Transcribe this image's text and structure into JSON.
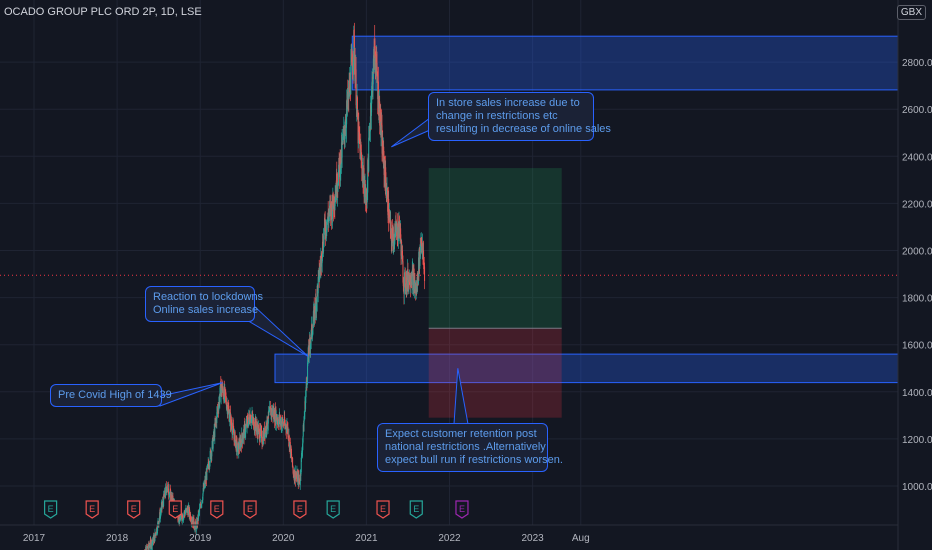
{
  "header": {
    "symbol_title": "OCADO GROUP PLC ORD 2P, 1D, LSE",
    "currency": "GBX"
  },
  "chart_data": {
    "type": "candlestick",
    "y_ticks": [
      "1000.0",
      "1200.0",
      "1400.0",
      "1600.0",
      "1800.0",
      "2000.0",
      "2200.0",
      "2400.0",
      "2600.0",
      "2800.0"
    ],
    "x_ticks": [
      "2017",
      "2018",
      "2019",
      "2020",
      "2021",
      "2022",
      "2023",
      "Aug"
    ],
    "ylim": [
      860,
      3000
    ],
    "current_price": 1895,
    "price_path": [
      [
        2018.3,
        700
      ],
      [
        2018.45,
        780
      ],
      [
        2018.6,
        1000
      ],
      [
        2018.75,
        860
      ],
      [
        2018.85,
        900
      ],
      [
        2018.95,
        820
      ],
      [
        2019.05,
        1000
      ],
      [
        2019.15,
        1180
      ],
      [
        2019.25,
        1420
      ],
      [
        2019.3,
        1380
      ],
      [
        2019.45,
        1150
      ],
      [
        2019.6,
        1300
      ],
      [
        2019.75,
        1200
      ],
      [
        2019.85,
        1320
      ],
      [
        2019.95,
        1280
      ],
      [
        2020.05,
        1250
      ],
      [
        2020.12,
        1060
      ],
      [
        2020.2,
        1020
      ],
      [
        2020.3,
        1550
      ],
      [
        2020.4,
        1800
      ],
      [
        2020.5,
        2100
      ],
      [
        2020.6,
        2200
      ],
      [
        2020.7,
        2400
      ],
      [
        2020.8,
        2700
      ],
      [
        2020.85,
        2880
      ],
      [
        2020.9,
        2500
      ],
      [
        2021.0,
        2200
      ],
      [
        2021.05,
        2600
      ],
      [
        2021.1,
        2860
      ],
      [
        2021.2,
        2400
      ],
      [
        2021.3,
        2050
      ],
      [
        2021.4,
        2100
      ],
      [
        2021.45,
        1860
      ],
      [
        2021.55,
        1900
      ],
      [
        2021.6,
        1820
      ],
      [
        2021.66,
        2060
      ],
      [
        2021.7,
        1900
      ]
    ],
    "zones": [
      {
        "name": "upper-resistance-zone",
        "from": 2682,
        "to": 2910,
        "x_start": 2020.83
      },
      {
        "name": "pre-covid-support-zone",
        "from": 1439,
        "to": 1560,
        "x_start": 2019.9
      }
    ],
    "position_tool": {
      "entry": 1670,
      "target": 2350,
      "stop": 1290,
      "x_start": 2021.75,
      "x_end": 2023.35
    },
    "earnings_markers": [
      {
        "date": 2017.2,
        "label": "E",
        "type": "positive"
      },
      {
        "date": 2017.7,
        "label": "E",
        "type": "negative"
      },
      {
        "date": 2018.2,
        "label": "E",
        "type": "negative"
      },
      {
        "date": 2018.7,
        "label": "E",
        "type": "negative"
      },
      {
        "date": 2019.2,
        "label": "E",
        "type": "negative"
      },
      {
        "date": 2019.6,
        "label": "E",
        "type": "negative"
      },
      {
        "date": 2020.2,
        "label": "E",
        "type": "negative"
      },
      {
        "date": 2020.6,
        "label": "E",
        "type": "positive"
      },
      {
        "date": 2021.2,
        "label": "E",
        "type": "negative"
      },
      {
        "date": 2021.6,
        "label": "E",
        "type": "positive"
      },
      {
        "date": 2022.15,
        "label": "E",
        "type": "upcoming"
      }
    ],
    "annotations": [
      {
        "key": "instore",
        "lines": [
          "In store sales increase due to",
          "change in restrictions etc",
          "resulting in decrease of online sales"
        ],
        "pointer_date": 2021.3,
        "pointer_price": 2440
      },
      {
        "key": "lockdown",
        "lines": [
          "Reaction to lockdowns",
          "Online sales increase"
        ],
        "pointer_date": 2020.3,
        "pointer_price": 1550
      },
      {
        "key": "precovid",
        "lines": [
          "Pre Covid High of 1439"
        ],
        "pointer_date": 2019.27,
        "pointer_price": 1439
      },
      {
        "key": "expect",
        "lines": [
          "Expect customer retention post",
          "national restrictions .Alternatively",
          "expect bull run if restrictions worsen."
        ],
        "pointer_date": 2022.1,
        "pointer_price": 1500
      }
    ]
  }
}
